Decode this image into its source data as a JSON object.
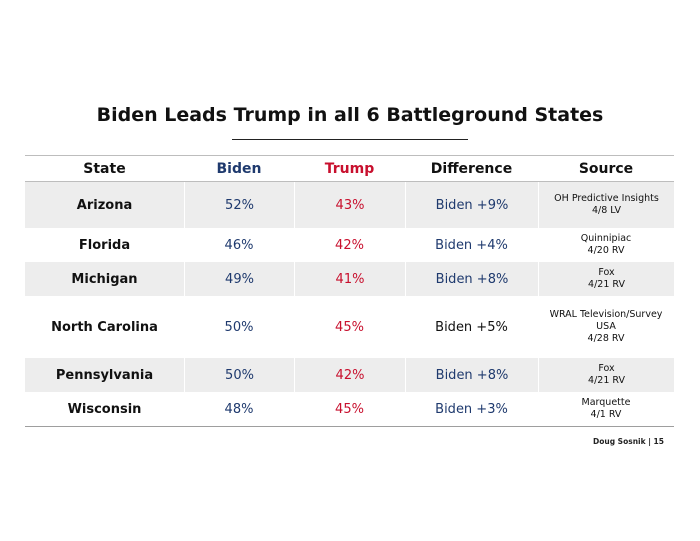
{
  "title": "Biden Leads Trump in all 6 Battleground States",
  "table": {
    "headers": {
      "state": "State",
      "biden": "Biden",
      "trump": "Trump",
      "difference": "Difference",
      "source": "Source"
    },
    "rows": [
      {
        "state": "Arizona",
        "biden": "52%",
        "trump": "43%",
        "difference": "Biden +9%",
        "source_lines": [
          "OH Predictive Insights",
          "4/8 LV"
        ]
      },
      {
        "state": "Florida",
        "biden": "46%",
        "trump": "42%",
        "difference": "Biden +4%",
        "source_lines": [
          "Quinnipiac",
          "4/20 RV"
        ]
      },
      {
        "state": "Michigan",
        "biden": "49%",
        "trump": "41%",
        "difference": "Biden +8%",
        "source_lines": [
          "Fox",
          "4/21 RV"
        ]
      },
      {
        "state": "North Carolina",
        "biden": "50%",
        "trump": "45%",
        "difference": "Biden +5%",
        "source_lines": [
          "WRAL Television/Survey",
          "USA",
          "4/28 RV"
        ]
      },
      {
        "state": "Pennsylvania",
        "biden": "50%",
        "trump": "42%",
        "difference": "Biden +8%",
        "source_lines": [
          "Fox",
          "4/21 RV"
        ]
      },
      {
        "state": "Wisconsin",
        "biden": "48%",
        "trump": "45%",
        "difference": "Biden +3%",
        "source_lines": [
          "Marquette",
          "4/1 RV"
        ]
      }
    ]
  },
  "footer": "Doug Sosnik | 15"
}
